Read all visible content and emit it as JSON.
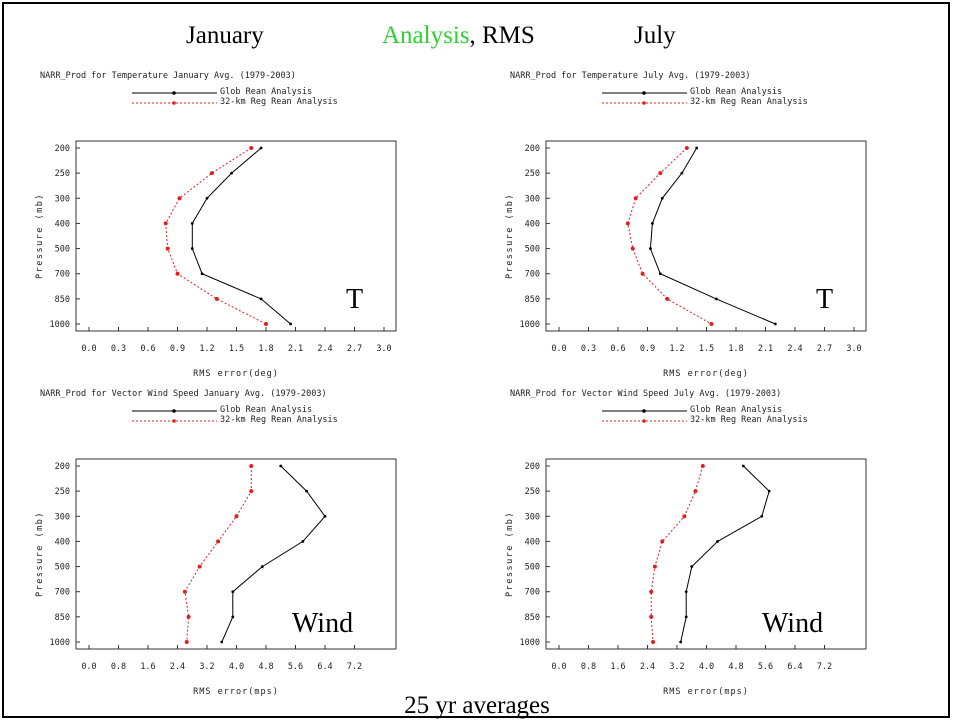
{
  "header": {
    "january": "January",
    "analysis": "Analysis",
    "rms": ", RMS",
    "july": "July"
  },
  "footer": "25 yr averages",
  "chart_data": [
    {
      "type": "line",
      "title": "NARR_Prod for Temperature January Avg. (1979-2003)",
      "xlabel": "RMS error(deg)",
      "ylabel": "Pressure (mb)",
      "annotation": "T",
      "xticks": [
        "0.0",
        "0.3",
        "0.6",
        "0.9",
        "1.2",
        "1.5",
        "1.8",
        "2.1",
        "2.4",
        "2.7",
        "3.0"
      ],
      "xlim": [
        0,
        3.0
      ],
      "y": [
        200,
        250,
        300,
        400,
        500,
        700,
        850,
        1000
      ],
      "series": [
        {
          "name": "Glob Rean Analysis",
          "color": "#000000",
          "values": [
            1.75,
            1.45,
            1.2,
            1.05,
            1.05,
            1.15,
            1.75,
            2.05
          ]
        },
        {
          "name": "32-km Reg Rean Analysis",
          "color": "#e02020",
          "values": [
            1.65,
            1.25,
            0.92,
            0.78,
            0.8,
            0.9,
            1.3,
            1.8
          ]
        }
      ]
    },
    {
      "type": "line",
      "title": "NARR_Prod for Temperature July Avg. (1979-2003)",
      "xlabel": "RMS error(deg)",
      "ylabel": "Pressure (mb)",
      "annotation": "T",
      "xticks": [
        "0.0",
        "0.3",
        "0.6",
        "0.9",
        "1.2",
        "1.5",
        "1.8",
        "2.1",
        "2.4",
        "2.7",
        "3.0"
      ],
      "xlim": [
        0,
        3.0
      ],
      "y": [
        200,
        250,
        300,
        400,
        500,
        700,
        850,
        1000
      ],
      "series": [
        {
          "name": "Glob Rean Analysis",
          "color": "#000000",
          "values": [
            1.4,
            1.25,
            1.05,
            0.95,
            0.93,
            1.03,
            1.6,
            2.2
          ]
        },
        {
          "name": "32-km Reg Rean Analysis",
          "color": "#e02020",
          "values": [
            1.3,
            1.03,
            0.78,
            0.7,
            0.75,
            0.85,
            1.1,
            1.55
          ]
        }
      ]
    },
    {
      "type": "line",
      "title": "NARR_Prod for Vector Wind Speed January Avg. (1979-2003)",
      "xlabel": "RMS error(mps)",
      "ylabel": "Pressure (mb)",
      "annotation": "Wind",
      "xticks": [
        "0.0",
        "0.8",
        "1.6",
        "2.4",
        "3.2",
        "4.0",
        "4.8",
        "5.6",
        "6.4",
        "7.2"
      ],
      "xlim": [
        0,
        8.0
      ],
      "y": [
        200,
        250,
        300,
        400,
        500,
        700,
        850,
        1000
      ],
      "series": [
        {
          "name": "Glob Rean Analysis",
          "color": "#000000",
          "values": [
            5.2,
            5.9,
            6.4,
            5.8,
            4.7,
            3.9,
            3.9,
            3.6
          ]
        },
        {
          "name": "32-km Reg Rean Analysis",
          "color": "#e02020",
          "values": [
            4.4,
            4.4,
            4.0,
            3.5,
            3.0,
            2.6,
            2.7,
            2.65
          ]
        }
      ]
    },
    {
      "type": "line",
      "title": "NARR_Prod for Vector Wind Speed July Avg. (1979-2003)",
      "xlabel": "RMS error(mps)",
      "ylabel": "Pressure (mb)",
      "annotation": "Wind",
      "xticks": [
        "0.0",
        "0.8",
        "1.6",
        "2.4",
        "3.2",
        "4.0",
        "4.8",
        "5.6",
        "6.4",
        "7.2"
      ],
      "xlim": [
        0,
        8.0
      ],
      "y": [
        200,
        250,
        300,
        400,
        500,
        700,
        850,
        1000
      ],
      "series": [
        {
          "name": "Glob Rean Analysis",
          "color": "#000000",
          "values": [
            5.0,
            5.7,
            5.5,
            4.3,
            3.6,
            3.45,
            3.45,
            3.3
          ]
        },
        {
          "name": "32-km Reg Rean Analysis",
          "color": "#e02020",
          "values": [
            3.9,
            3.7,
            3.4,
            2.8,
            2.6,
            2.5,
            2.5,
            2.55
          ]
        }
      ]
    }
  ]
}
